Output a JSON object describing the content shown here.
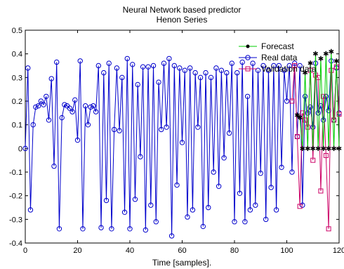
{
  "chart_data": {
    "type": "line",
    "title": "Neural Network based predictor",
    "subtitle": "Henon Series",
    "xlabel": "Time [samples].",
    "ylabel": "",
    "xlim": [
      0,
      120
    ],
    "ylim": [
      -0.4,
      0.5
    ],
    "xticks": [
      "0",
      "20",
      "40",
      "60",
      "80",
      "100",
      "120"
    ],
    "yticks": [
      "-0.4",
      "-0.3",
      "-0.2",
      "-0.1",
      "0",
      "0.1",
      "0.2",
      "0.3",
      "0.4",
      "0.5"
    ],
    "grid": false,
    "legend_position": "top-right",
    "series": [
      {
        "name": "Forecast",
        "color": "#00cc00",
        "marker": "star",
        "x": [
          104,
          105,
          106,
          107,
          108,
          109,
          110,
          111,
          112,
          113,
          114,
          115,
          116,
          117,
          118,
          119,
          120
        ],
        "values": [
          0.14,
          0.13,
          0.0,
          0.32,
          0.0,
          0.36,
          0.0,
          0.4,
          0.0,
          0.38,
          0.0,
          0.4,
          0.0,
          0.41,
          0.0,
          0.37,
          0.0
        ]
      },
      {
        "name": "Real data",
        "color": "#0000cc",
        "marker": "circle",
        "x": [
          0,
          1,
          2,
          3,
          4,
          5,
          6,
          7,
          8,
          9,
          10,
          11,
          12,
          13,
          14,
          15,
          16,
          17,
          18,
          19,
          20,
          21,
          22,
          23,
          24,
          25,
          26,
          27,
          28,
          29,
          30,
          31,
          32,
          33,
          34,
          35,
          36,
          37,
          38,
          39,
          40,
          41,
          42,
          43,
          44,
          45,
          46,
          47,
          48,
          49,
          50,
          51,
          52,
          53,
          54,
          55,
          56,
          57,
          58,
          59,
          60,
          61,
          62,
          63,
          64,
          65,
          66,
          67,
          68,
          69,
          70,
          71,
          72,
          73,
          74,
          75,
          76,
          77,
          78,
          79,
          80,
          81,
          82,
          83,
          84,
          85,
          86,
          87,
          88,
          89,
          90,
          91,
          92,
          93,
          94,
          95,
          96,
          97,
          98,
          99,
          100,
          101,
          102,
          103,
          104,
          105,
          106,
          107,
          108,
          109,
          110,
          111,
          112,
          113,
          114,
          115,
          116,
          117,
          118,
          119,
          120
        ],
        "values": [
          0.0,
          0.34,
          -0.26,
          0.1,
          0.175,
          0.18,
          0.2,
          0.185,
          0.22,
          0.12,
          0.295,
          -0.075,
          0.365,
          -0.34,
          0.13,
          0.185,
          0.18,
          0.17,
          0.155,
          0.205,
          0.035,
          0.37,
          -0.34,
          0.18,
          0.1,
          0.175,
          0.18,
          0.155,
          0.35,
          -0.335,
          0.32,
          -0.22,
          0.36,
          -0.34,
          0.08,
          0.34,
          0.075,
          0.3,
          -0.27,
          0.38,
          -0.34,
          0.355,
          -0.215,
          0.27,
          -0.035,
          0.345,
          -0.345,
          0.345,
          -0.24,
          0.35,
          -0.31,
          0.28,
          0.08,
          0.36,
          0.09,
          0.38,
          -0.37,
          0.35,
          -0.155,
          0.34,
          0.025,
          0.33,
          -0.29,
          0.34,
          -0.26,
          0.32,
          0.09,
          0.3,
          -0.33,
          0.32,
          -0.25,
          0.3,
          -0.1,
          0.34,
          -0.16,
          0.33,
          -0.04,
          0.32,
          0.065,
          0.36,
          -0.31,
          0.32,
          -0.19,
          0.365,
          -0.31,
          0.22,
          -0.26,
          0.36,
          -0.24,
          0.33,
          -0.105,
          0.35,
          -0.3,
          0.33,
          -0.165,
          0.35,
          -0.26,
          0.35,
          -0.08,
          0.33,
          0.2,
          0.35,
          -0.1,
          0.36,
          0.05,
          0.35,
          -0.24,
          0.22,
          0.15,
          0.175,
          0.09,
          0.36,
          0.15,
          0.18,
          0.12,
          0.22,
          0.16,
          0.37,
          0.12,
          0.34,
          0.15
        ],
        "note": ""
      },
      {
        "name": "Validation data",
        "color": "#cc0066",
        "marker": "square",
        "x": [
          102,
          103,
          104,
          105,
          106,
          107,
          108,
          109,
          110,
          111,
          112,
          113,
          114,
          115,
          116,
          117,
          118,
          119,
          120
        ],
        "values": [
          0.2,
          0.35,
          0.05,
          -0.245,
          0.15,
          0.12,
          0.09,
          0.33,
          -0.05,
          0.31,
          0.3,
          -0.18,
          0.22,
          -0.03,
          -0.34,
          0.33,
          0.12,
          0.345,
          0.145
        ]
      }
    ]
  }
}
